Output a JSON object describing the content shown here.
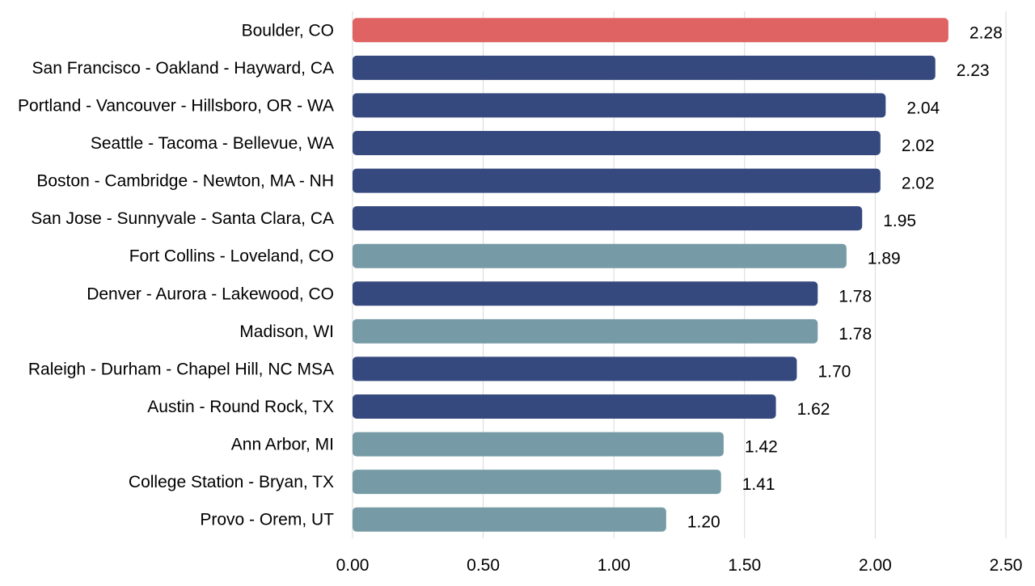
{
  "chart_data": {
    "type": "bar",
    "orientation": "horizontal",
    "categories": [
      "Boulder, CO",
      "San Francisco - Oakland - Hayward, CA",
      "Portland - Vancouver - Hillsboro, OR - WA",
      "Seattle - Tacoma - Bellevue, WA",
      "Boston - Cambridge - Newton, MA - NH",
      "San Jose - Sunnyvale - Santa Clara, CA",
      "Fort Collins - Loveland, CO",
      "Denver - Aurora - Lakewood, CO",
      "Madison, WI",
      "Raleigh - Durham - Chapel Hill, NC MSA",
      "Austin - Round Rock, TX",
      "Ann Arbor, MI",
      "College Station - Bryan, TX",
      "Provo - Orem, UT"
    ],
    "values": [
      2.28,
      2.23,
      2.04,
      2.02,
      2.02,
      1.95,
      1.89,
      1.78,
      1.78,
      1.7,
      1.62,
      1.42,
      1.41,
      1.2
    ],
    "value_labels": [
      "2.28",
      "2.23",
      "2.04",
      "2.02",
      "2.02",
      "1.95",
      "1.89",
      "1.78",
      "1.78",
      "1.70",
      "1.62",
      "1.42",
      "1.41",
      "1.20"
    ],
    "bar_colors": [
      "#E06363",
      "#36497F",
      "#36497F",
      "#36497F",
      "#36497F",
      "#36497F",
      "#769BA6",
      "#36497F",
      "#769BA6",
      "#36497F",
      "#36497F",
      "#769BA6",
      "#769BA6",
      "#769BA6"
    ],
    "xlim": [
      0,
      2.5
    ],
    "xticks": [
      0,
      0.5,
      1.0,
      1.5,
      2.0,
      2.5
    ],
    "xtick_labels": [
      "0.00",
      "0.50",
      "1.00",
      "1.50",
      "2.00",
      "2.50"
    ],
    "title": "",
    "xlabel": "",
    "ylabel": "",
    "grid": "vertical",
    "legend": "none",
    "colors": {
      "highlight": "#E06363",
      "navy": "#36497F",
      "teal": "#769BA6",
      "gridline": "#D9D9D9"
    }
  }
}
